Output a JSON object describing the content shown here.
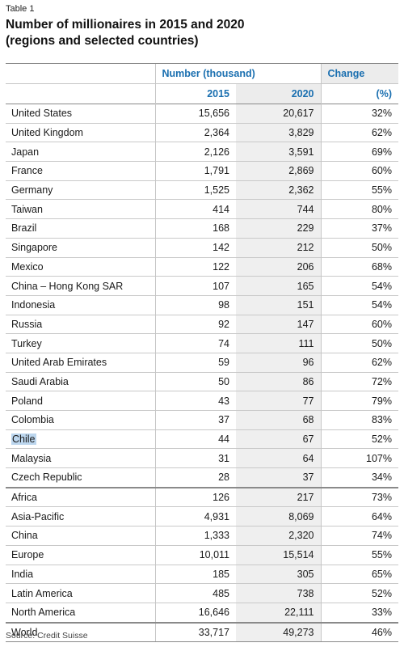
{
  "table_label": "Table 1",
  "title_line1": "Number of millionaires in 2015 and 2020",
  "title_line2": "(regions and selected countries)",
  "headers": {
    "number_group": "Number (thousand)",
    "change_group": "Change",
    "col_2015": "2015",
    "col_2020": "2020",
    "col_pct": "(%)"
  },
  "rows": [
    {
      "name": "United States",
      "v2015": "15,656",
      "v2020": "20,617",
      "change": "32%"
    },
    {
      "name": "United Kingdom",
      "v2015": "2,364",
      "v2020": "3,829",
      "change": "62%"
    },
    {
      "name": "Japan",
      "v2015": "2,126",
      "v2020": "3,591",
      "change": "69%"
    },
    {
      "name": "France",
      "v2015": "1,791",
      "v2020": "2,869",
      "change": "60%"
    },
    {
      "name": "Germany",
      "v2015": "1,525",
      "v2020": "2,362",
      "change": "55%"
    },
    {
      "name": "Taiwan",
      "v2015": "414",
      "v2020": "744",
      "change": "80%"
    },
    {
      "name": "Brazil",
      "v2015": "168",
      "v2020": "229",
      "change": "37%"
    },
    {
      "name": "Singapore",
      "v2015": "142",
      "v2020": "212",
      "change": "50%"
    },
    {
      "name": "Mexico",
      "v2015": "122",
      "v2020": "206",
      "change": "68%"
    },
    {
      "name": "China – Hong Kong SAR",
      "v2015": "107",
      "v2020": "165",
      "change": "54%"
    },
    {
      "name": "Indonesia",
      "v2015": "98",
      "v2020": "151",
      "change": "54%"
    },
    {
      "name": "Russia",
      "v2015": "92",
      "v2020": "147",
      "change": "60%"
    },
    {
      "name": "Turkey",
      "v2015": "74",
      "v2020": "111",
      "change": "50%"
    },
    {
      "name": "United Arab Emirates",
      "v2015": "59",
      "v2020": "96",
      "change": "62%"
    },
    {
      "name": "Saudi Arabia",
      "v2015": "50",
      "v2020": "86",
      "change": "72%"
    },
    {
      "name": "Poland",
      "v2015": "43",
      "v2020": "77",
      "change": "79%"
    },
    {
      "name": "Colombia",
      "v2015": "37",
      "v2020": "68",
      "change": "83%"
    },
    {
      "name": "Chile",
      "v2015": "44",
      "v2020": "67",
      "change": "52%",
      "highlighted": true
    },
    {
      "name": "Malaysia",
      "v2015": "31",
      "v2020": "64",
      "change": "107%"
    },
    {
      "name": "Czech Republic",
      "v2015": "28",
      "v2020": "37",
      "change": "34%"
    },
    {
      "name": "Africa",
      "v2015": "126",
      "v2020": "217",
      "change": "73%",
      "separator_above": true
    },
    {
      "name": "Asia-Pacific",
      "v2015": "4,931",
      "v2020": "8,069",
      "change": "64%"
    },
    {
      "name": "China",
      "v2015": "1,333",
      "v2020": "2,320",
      "change": "74%"
    },
    {
      "name": "Europe",
      "v2015": "10,011",
      "v2020": "15,514",
      "change": "55%"
    },
    {
      "name": "India",
      "v2015": "185",
      "v2020": "305",
      "change": "65%"
    },
    {
      "name": "Latin America",
      "v2015": "485",
      "v2020": "738",
      "change": "52%"
    },
    {
      "name": "North America",
      "v2015": "16,646",
      "v2020": "22,111",
      "change": "33%"
    },
    {
      "name": "World",
      "v2015": "33,717",
      "v2020": "49,273",
      "change": "46%",
      "separator_above": true
    }
  ],
  "source": "Source: Credit Suisse",
  "colors": {
    "header_text": "#1a6fb0",
    "band_fill": "#efefef",
    "highlight": "#bcd6ee",
    "rule": "#8a8a8a"
  }
}
